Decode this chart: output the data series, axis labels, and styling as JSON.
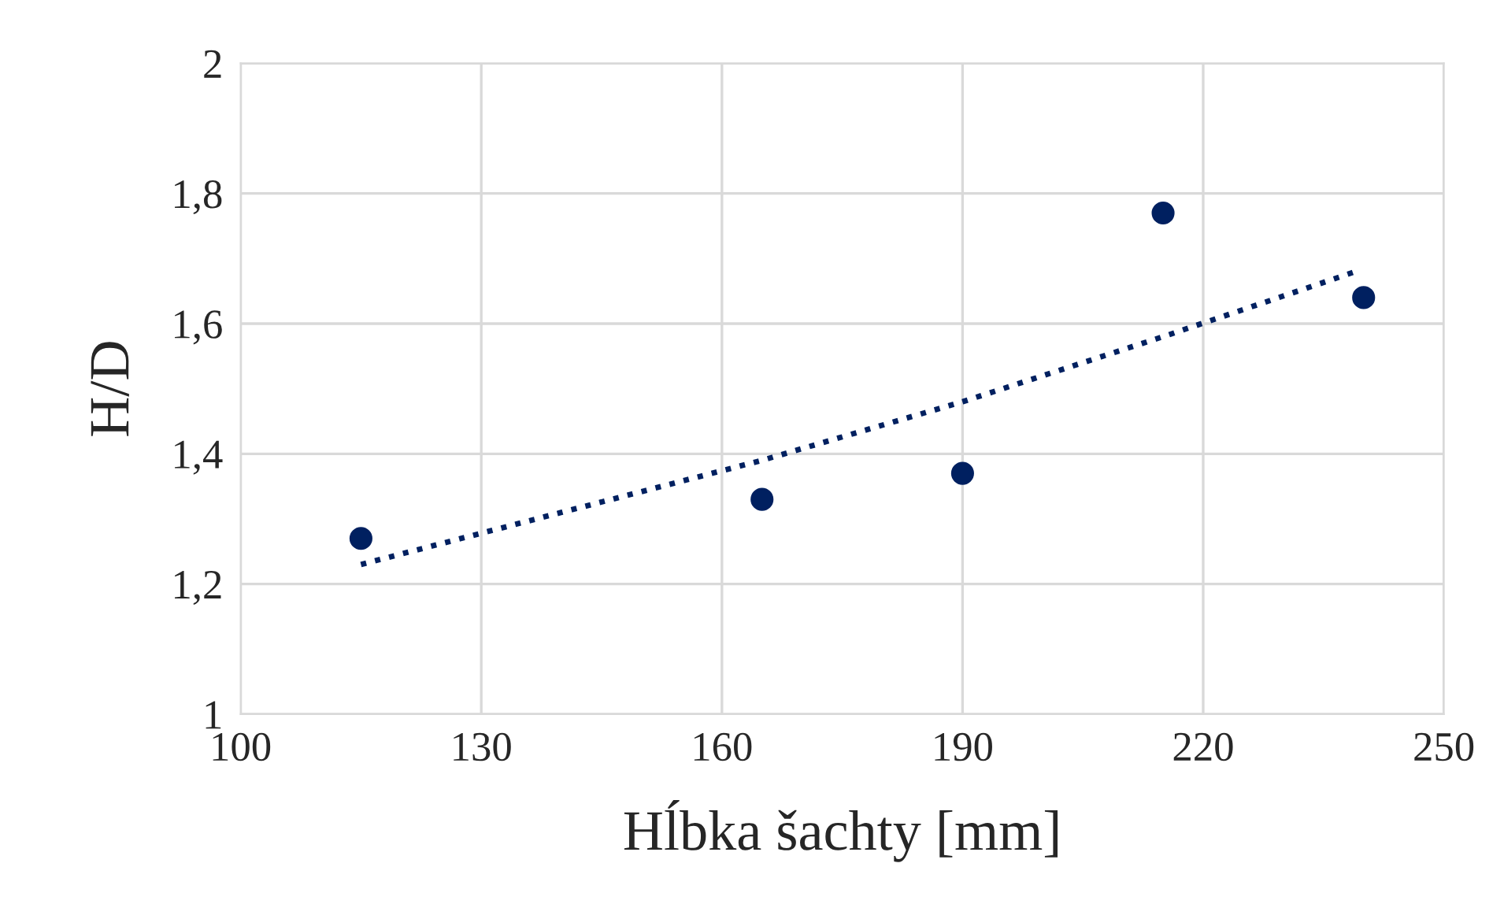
{
  "chart_data": {
    "type": "scatter",
    "xlabel": "Hĺbka šachty [mm]",
    "ylabel": "H/D",
    "xlim": [
      100,
      250
    ],
    "xticks": [
      100,
      130,
      160,
      190,
      220,
      250
    ],
    "ylim": [
      1,
      2
    ],
    "yticks": [
      1,
      {
        "value": 1.2,
        "label": "1,2"
      },
      {
        "value": 1.4,
        "label": "1,4"
      },
      {
        "value": 1.6,
        "label": "1,6"
      },
      {
        "value": 1.8,
        "label": "1,8"
      },
      2
    ],
    "grid": true,
    "series": [
      {
        "color": "#002060",
        "marker": "circle",
        "x": [
          115,
          165,
          190,
          215,
          240
        ],
        "values": [
          1.27,
          1.33,
          1.37,
          1.77,
          1.64
        ]
      },
      {
        "type": "line",
        "color": "#002060",
        "marker": "none",
        "line_style": "dotted",
        "x": [
          115,
          140,
          165,
          190,
          215,
          239
        ],
        "values": [
          1.23,
          1.31,
          1.39,
          1.48,
          1.58,
          1.68
        ]
      }
    ]
  }
}
